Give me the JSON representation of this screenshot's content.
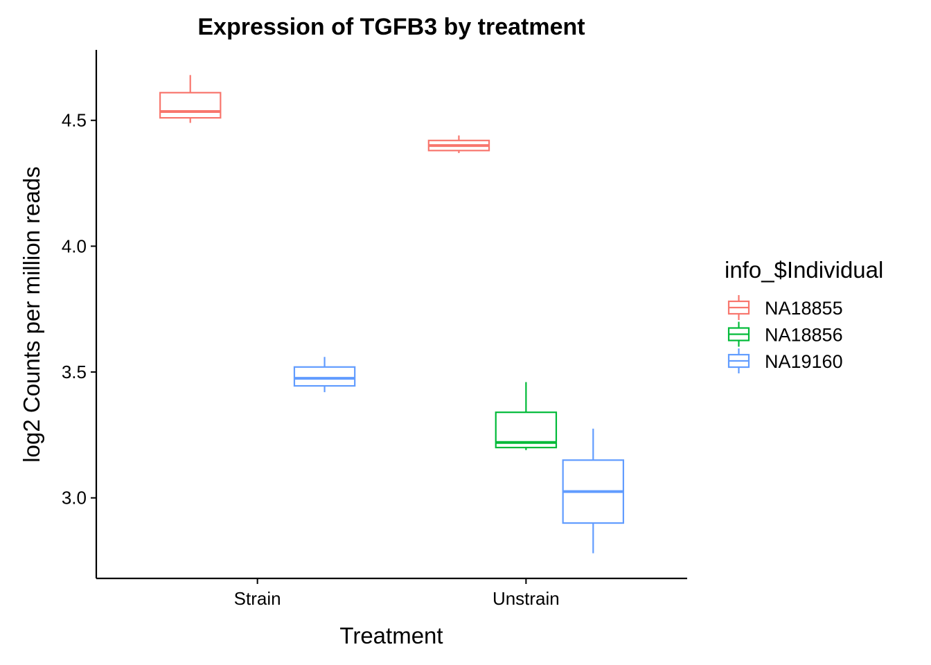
{
  "chart_data": {
    "type": "boxplot",
    "title": "Expression of TGFB3 by treatment",
    "xlabel": "Treatment",
    "ylabel": "log2 Counts per million reads",
    "categories": [
      "Strain",
      "Unstrain"
    ],
    "yticks": [
      3.0,
      3.5,
      4.0,
      4.5
    ],
    "ylim": [
      2.68,
      4.78
    ],
    "grid": false,
    "legend": {
      "title": "info_$Individual",
      "position": "right"
    },
    "series": [
      {
        "name": "NA18855",
        "color": "#F8766D",
        "boxes": [
          {
            "category": "Strain",
            "whisker_low": 4.49,
            "q1": 4.51,
            "median": 4.535,
            "q3": 4.61,
            "whisker_high": 4.68
          },
          {
            "category": "Unstrain",
            "whisker_low": 4.37,
            "q1": 4.38,
            "median": 4.4,
            "q3": 4.42,
            "whisker_high": 4.44
          }
        ]
      },
      {
        "name": "NA18856",
        "color": "#00BA38",
        "boxes": [
          {
            "category": "Unstrain",
            "whisker_low": 3.19,
            "q1": 3.2,
            "median": 3.22,
            "q3": 3.34,
            "whisker_high": 3.46
          }
        ]
      },
      {
        "name": "NA19160",
        "color": "#619CFF",
        "boxes": [
          {
            "category": "Strain",
            "whisker_low": 3.42,
            "q1": 3.445,
            "median": 3.475,
            "q3": 3.52,
            "whisker_high": 3.56
          },
          {
            "category": "Unstrain",
            "whisker_low": 2.78,
            "q1": 2.9,
            "median": 3.025,
            "q3": 3.15,
            "whisker_high": 3.275
          }
        ]
      }
    ]
  }
}
